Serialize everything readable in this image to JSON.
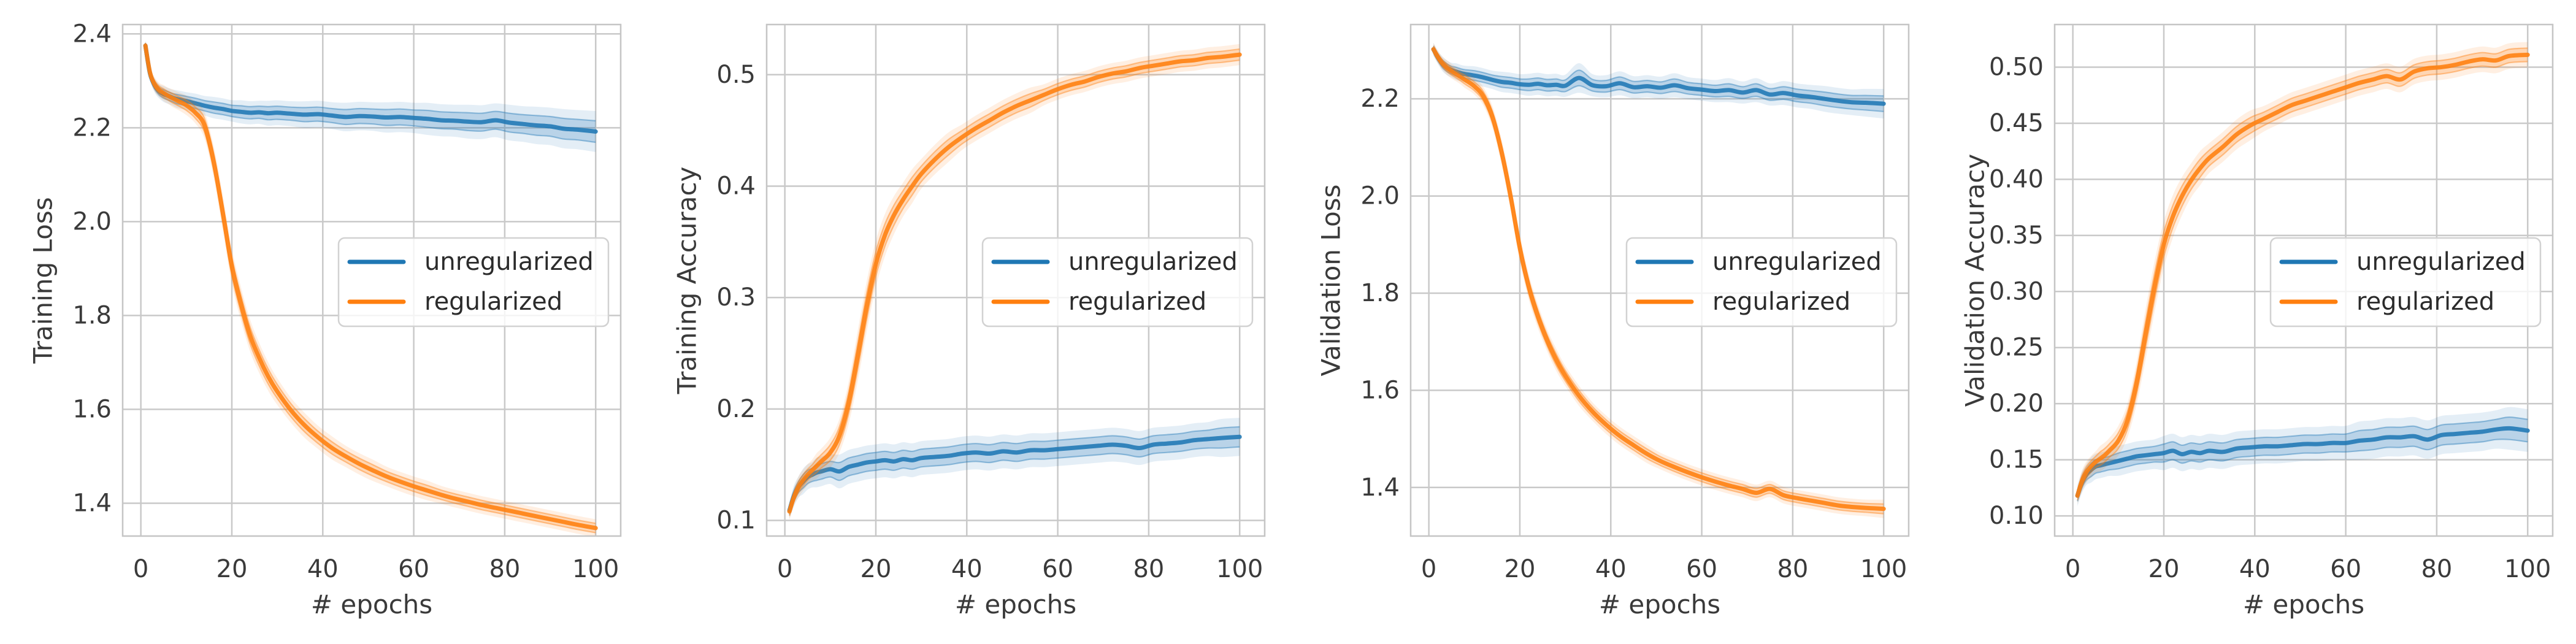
{
  "figure": {
    "background": "#ffffff",
    "n_panels": 4
  },
  "style": {
    "grid_color": "#c9c9c9",
    "spine_color": "#c5c5c5",
    "text_color": "#3a3a3a",
    "legend_border_color": "#d2d2d2",
    "legend_bg_color": "#ffffff",
    "series_colors": {
      "unregularized": "#1f77b4",
      "regularized": "#ff7f0e"
    }
  },
  "legend": {
    "labels": [
      "unregularized",
      "regularized"
    ]
  },
  "chart_data": [
    {
      "type": "line",
      "title": "",
      "xlabel": "# epochs",
      "ylabel": "Training Loss",
      "xlim": [
        -4,
        105.5
      ],
      "ylim": [
        1.33,
        2.42
      ],
      "xtick_values": [
        0,
        20,
        40,
        60,
        80,
        100
      ],
      "xtick_labels": [
        "0",
        "20",
        "40",
        "60",
        "80",
        "100"
      ],
      "ytick_values": [
        1.4,
        1.6,
        1.8,
        2.0,
        2.2,
        2.4
      ],
      "ytick_labels": [
        "1.4",
        "1.6",
        "1.8",
        "2.0",
        "2.2",
        "2.4"
      ],
      "grid": true,
      "legend_position": "center right",
      "x": [
        1,
        2,
        3,
        4,
        5,
        6,
        7,
        8,
        10,
        12,
        14,
        16,
        18,
        20,
        22,
        24,
        26,
        28,
        30,
        33,
        36,
        39,
        42,
        45,
        48,
        51,
        54,
        57,
        60,
        63,
        66,
        69,
        72,
        75,
        78,
        81,
        84,
        87,
        90,
        93,
        96,
        100
      ],
      "series": [
        {
          "name": "unregularized",
          "color": "#1f77b4",
          "values": [
            2.375,
            2.316,
            2.291,
            2.278,
            2.272,
            2.268,
            2.264,
            2.261,
            2.257,
            2.252,
            2.247,
            2.243,
            2.24,
            2.236,
            2.234,
            2.232,
            2.233,
            2.231,
            2.232,
            2.23,
            2.228,
            2.229,
            2.226,
            2.223,
            2.225,
            2.224,
            2.222,
            2.223,
            2.221,
            2.219,
            2.216,
            2.215,
            2.213,
            2.212,
            2.216,
            2.211,
            2.208,
            2.205,
            2.203,
            2.198,
            2.196,
            2.192
          ],
          "band": [
            0.006,
            0.007,
            0.008,
            0.008,
            0.009,
            0.009,
            0.009,
            0.01,
            0.01,
            0.011,
            0.011,
            0.012,
            0.012,
            0.012,
            0.013,
            0.013,
            0.013,
            0.014,
            0.014,
            0.014,
            0.015,
            0.015,
            0.015,
            0.016,
            0.016,
            0.016,
            0.017,
            0.017,
            0.017,
            0.018,
            0.018,
            0.018,
            0.019,
            0.019,
            0.019,
            0.02,
            0.02,
            0.021,
            0.021,
            0.022,
            0.022,
            0.023
          ]
        },
        {
          "name": "regularized",
          "color": "#ff7f0e",
          "values": [
            2.375,
            2.318,
            2.293,
            2.281,
            2.274,
            2.268,
            2.263,
            2.258,
            2.248,
            2.232,
            2.205,
            2.128,
            2.02,
            1.905,
            1.825,
            1.758,
            1.71,
            1.67,
            1.638,
            1.598,
            1.566,
            1.54,
            1.518,
            1.5,
            1.484,
            1.47,
            1.457,
            1.446,
            1.436,
            1.427,
            1.418,
            1.41,
            1.403,
            1.396,
            1.39,
            1.384,
            1.378,
            1.372,
            1.366,
            1.36,
            1.354,
            1.347
          ],
          "band": [
            0.006,
            0.007,
            0.008,
            0.008,
            0.009,
            0.009,
            0.01,
            0.01,
            0.011,
            0.012,
            0.015,
            0.018,
            0.02,
            0.02,
            0.019,
            0.018,
            0.017,
            0.016,
            0.015,
            0.014,
            0.014,
            0.013,
            0.013,
            0.012,
            0.012,
            0.012,
            0.011,
            0.011,
            0.011,
            0.011,
            0.01,
            0.01,
            0.01,
            0.01,
            0.01,
            0.01,
            0.01,
            0.01,
            0.01,
            0.01,
            0.01,
            0.01
          ]
        }
      ]
    },
    {
      "type": "line",
      "title": "",
      "xlabel": "# epochs",
      "ylabel": "Training Accuracy",
      "xlim": [
        -4,
        105.5
      ],
      "ylim": [
        0.086,
        0.545
      ],
      "xtick_values": [
        0,
        20,
        40,
        60,
        80,
        100
      ],
      "xtick_labels": [
        "0",
        "20",
        "40",
        "60",
        "80",
        "100"
      ],
      "ytick_values": [
        0.1,
        0.2,
        0.3,
        0.4,
        0.5
      ],
      "ytick_labels": [
        "0.1",
        "0.2",
        "0.3",
        "0.4",
        "0.5"
      ],
      "grid": true,
      "legend_position": "center right",
      "x": [
        1,
        2,
        3,
        4,
        5,
        6,
        7,
        8,
        10,
        12,
        14,
        16,
        18,
        20,
        22,
        24,
        26,
        28,
        30,
        33,
        36,
        39,
        42,
        45,
        48,
        51,
        54,
        57,
        60,
        63,
        66,
        69,
        72,
        75,
        78,
        81,
        84,
        87,
        90,
        93,
        96,
        100
      ],
      "series": [
        {
          "name": "unregularized",
          "color": "#1f77b4",
          "values": [
            0.109,
            0.122,
            0.13,
            0.135,
            0.139,
            0.141,
            0.143,
            0.144,
            0.146,
            0.144,
            0.148,
            0.15,
            0.152,
            0.153,
            0.154,
            0.153,
            0.155,
            0.154,
            0.156,
            0.157,
            0.158,
            0.16,
            0.161,
            0.16,
            0.162,
            0.161,
            0.163,
            0.163,
            0.164,
            0.165,
            0.166,
            0.167,
            0.168,
            0.167,
            0.165,
            0.168,
            0.169,
            0.17,
            0.172,
            0.173,
            0.174,
            0.175
          ],
          "band": [
            0.004,
            0.005,
            0.005,
            0.006,
            0.006,
            0.006,
            0.007,
            0.007,
            0.007,
            0.008,
            0.008,
            0.008,
            0.008,
            0.008,
            0.008,
            0.008,
            0.008,
            0.008,
            0.008,
            0.008,
            0.008,
            0.008,
            0.008,
            0.008,
            0.008,
            0.008,
            0.008,
            0.008,
            0.008,
            0.008,
            0.008,
            0.008,
            0.008,
            0.008,
            0.008,
            0.008,
            0.008,
            0.008,
            0.008,
            0.008,
            0.009,
            0.009
          ]
        },
        {
          "name": "regularized",
          "color": "#ff7f0e",
          "values": [
            0.108,
            0.121,
            0.13,
            0.136,
            0.141,
            0.145,
            0.149,
            0.153,
            0.161,
            0.176,
            0.205,
            0.247,
            0.292,
            0.33,
            0.356,
            0.374,
            0.388,
            0.4,
            0.411,
            0.424,
            0.435,
            0.444,
            0.452,
            0.459,
            0.466,
            0.472,
            0.477,
            0.482,
            0.487,
            0.491,
            0.494,
            0.498,
            0.501,
            0.503,
            0.506,
            0.508,
            0.51,
            0.512,
            0.513,
            0.515,
            0.516,
            0.518
          ],
          "band": [
            0.004,
            0.004,
            0.005,
            0.005,
            0.005,
            0.005,
            0.006,
            0.006,
            0.007,
            0.008,
            0.01,
            0.012,
            0.012,
            0.011,
            0.01,
            0.009,
            0.008,
            0.008,
            0.007,
            0.007,
            0.007,
            0.006,
            0.006,
            0.006,
            0.006,
            0.006,
            0.006,
            0.005,
            0.005,
            0.005,
            0.005,
            0.005,
            0.005,
            0.005,
            0.005,
            0.005,
            0.005,
            0.005,
            0.005,
            0.005,
            0.005,
            0.005
          ]
        }
      ]
    },
    {
      "type": "line",
      "title": "",
      "xlabel": "# epochs",
      "ylabel": "Validation Loss",
      "xlim": [
        -4,
        105.5
      ],
      "ylim": [
        1.3,
        2.353
      ],
      "xtick_values": [
        0,
        20,
        40,
        60,
        80,
        100
      ],
      "xtick_labels": [
        "0",
        "20",
        "40",
        "60",
        "80",
        "100"
      ],
      "ytick_values": [
        1.4,
        1.6,
        1.8,
        2.0,
        2.2
      ],
      "ytick_labels": [
        "1.4",
        "1.6",
        "1.8",
        "2.0",
        "2.2"
      ],
      "grid": true,
      "legend_position": "center right",
      "x": [
        1,
        2,
        3,
        4,
        5,
        6,
        7,
        8,
        10,
        12,
        14,
        16,
        18,
        20,
        22,
        24,
        26,
        28,
        30,
        33,
        36,
        39,
        42,
        45,
        48,
        51,
        54,
        57,
        60,
        63,
        66,
        69,
        72,
        75,
        78,
        81,
        84,
        87,
        90,
        93,
        96,
        100
      ],
      "series": [
        {
          "name": "unregularized",
          "color": "#1f77b4",
          "values": [
            2.302,
            2.285,
            2.272,
            2.264,
            2.259,
            2.256,
            2.253,
            2.251,
            2.248,
            2.244,
            2.239,
            2.235,
            2.233,
            2.23,
            2.229,
            2.231,
            2.228,
            2.229,
            2.227,
            2.243,
            2.228,
            2.226,
            2.232,
            2.224,
            2.226,
            2.223,
            2.228,
            2.222,
            2.219,
            2.216,
            2.218,
            2.213,
            2.218,
            2.209,
            2.212,
            2.207,
            2.204,
            2.2,
            2.196,
            2.193,
            2.192,
            2.19
          ],
          "band": [
            0.007,
            0.007,
            0.008,
            0.008,
            0.008,
            0.009,
            0.009,
            0.009,
            0.01,
            0.01,
            0.01,
            0.011,
            0.011,
            0.011,
            0.012,
            0.012,
            0.012,
            0.012,
            0.012,
            0.016,
            0.012,
            0.012,
            0.013,
            0.012,
            0.012,
            0.012,
            0.013,
            0.012,
            0.012,
            0.012,
            0.013,
            0.012,
            0.013,
            0.012,
            0.013,
            0.013,
            0.013,
            0.014,
            0.014,
            0.014,
            0.015,
            0.016
          ]
        },
        {
          "name": "regularized",
          "color": "#ff7f0e",
          "values": [
            2.302,
            2.286,
            2.273,
            2.264,
            2.257,
            2.251,
            2.245,
            2.239,
            2.226,
            2.205,
            2.162,
            2.09,
            1.998,
            1.893,
            1.812,
            1.752,
            1.703,
            1.663,
            1.63,
            1.589,
            1.556,
            1.529,
            1.506,
            1.487,
            1.469,
            1.454,
            1.442,
            1.431,
            1.421,
            1.412,
            1.404,
            1.397,
            1.389,
            1.397,
            1.384,
            1.378,
            1.373,
            1.368,
            1.363,
            1.36,
            1.358,
            1.356
          ],
          "band": [
            0.007,
            0.007,
            0.007,
            0.008,
            0.008,
            0.008,
            0.008,
            0.009,
            0.009,
            0.01,
            0.012,
            0.014,
            0.015,
            0.015,
            0.014,
            0.013,
            0.012,
            0.012,
            0.011,
            0.011,
            0.01,
            0.01,
            0.01,
            0.01,
            0.01,
            0.009,
            0.009,
            0.009,
            0.009,
            0.009,
            0.009,
            0.009,
            0.009,
            0.009,
            0.009,
            0.009,
            0.009,
            0.009,
            0.009,
            0.009,
            0.009,
            0.01
          ]
        }
      ]
    },
    {
      "type": "line",
      "title": "",
      "xlabel": "# epochs",
      "ylabel": "Validation Accuracy",
      "xlim": [
        -4,
        105.5
      ],
      "ylim": [
        0.082,
        0.538
      ],
      "xtick_values": [
        0,
        20,
        40,
        60,
        80,
        100
      ],
      "xtick_labels": [
        "0",
        "20",
        "40",
        "60",
        "80",
        "100"
      ],
      "ytick_values": [
        0.1,
        0.15,
        0.2,
        0.25,
        0.3,
        0.35,
        0.4,
        0.45,
        0.5
      ],
      "ytick_labels": [
        "0.10",
        "0.15",
        "0.20",
        "0.25",
        "0.30",
        "0.35",
        "0.40",
        "0.45",
        "0.50"
      ],
      "grid": true,
      "legend_position": "center right",
      "x": [
        1,
        2,
        3,
        4,
        5,
        6,
        7,
        8,
        10,
        12,
        14,
        16,
        18,
        20,
        22,
        24,
        26,
        28,
        30,
        33,
        36,
        39,
        42,
        45,
        48,
        51,
        54,
        57,
        60,
        63,
        66,
        69,
        72,
        75,
        78,
        81,
        84,
        87,
        90,
        93,
        96,
        100
      ],
      "series": [
        {
          "name": "unregularized",
          "color": "#1f77b4",
          "values": [
            0.118,
            0.13,
            0.137,
            0.141,
            0.144,
            0.145,
            0.146,
            0.147,
            0.149,
            0.151,
            0.153,
            0.154,
            0.155,
            0.156,
            0.158,
            0.155,
            0.157,
            0.156,
            0.158,
            0.157,
            0.16,
            0.161,
            0.162,
            0.162,
            0.163,
            0.164,
            0.164,
            0.165,
            0.165,
            0.167,
            0.168,
            0.17,
            0.17,
            0.171,
            0.168,
            0.172,
            0.173,
            0.174,
            0.175,
            0.177,
            0.178,
            0.176
          ],
          "band": [
            0.005,
            0.005,
            0.005,
            0.006,
            0.006,
            0.006,
            0.006,
            0.006,
            0.007,
            0.007,
            0.007,
            0.007,
            0.007,
            0.008,
            0.008,
            0.008,
            0.008,
            0.008,
            0.008,
            0.008,
            0.008,
            0.008,
            0.008,
            0.008,
            0.008,
            0.008,
            0.008,
            0.008,
            0.008,
            0.009,
            0.009,
            0.009,
            0.009,
            0.009,
            0.009,
            0.009,
            0.009,
            0.009,
            0.009,
            0.009,
            0.01,
            0.01
          ]
        },
        {
          "name": "regularized",
          "color": "#ff7f0e",
          "values": [
            0.118,
            0.131,
            0.139,
            0.144,
            0.148,
            0.151,
            0.154,
            0.158,
            0.167,
            0.185,
            0.218,
            0.262,
            0.305,
            0.342,
            0.367,
            0.385,
            0.399,
            0.41,
            0.419,
            0.429,
            0.44,
            0.448,
            0.454,
            0.46,
            0.466,
            0.47,
            0.474,
            0.478,
            0.482,
            0.486,
            0.489,
            0.492,
            0.489,
            0.496,
            0.499,
            0.5,
            0.502,
            0.505,
            0.507,
            0.506,
            0.51,
            0.511
          ],
          "band": [
            0.004,
            0.005,
            0.005,
            0.005,
            0.005,
            0.006,
            0.006,
            0.006,
            0.007,
            0.008,
            0.01,
            0.012,
            0.012,
            0.011,
            0.01,
            0.009,
            0.008,
            0.008,
            0.007,
            0.007,
            0.007,
            0.007,
            0.006,
            0.006,
            0.006,
            0.006,
            0.006,
            0.006,
            0.006,
            0.006,
            0.006,
            0.006,
            0.006,
            0.006,
            0.006,
            0.006,
            0.006,
            0.006,
            0.006,
            0.006,
            0.006,
            0.006
          ]
        }
      ]
    }
  ]
}
